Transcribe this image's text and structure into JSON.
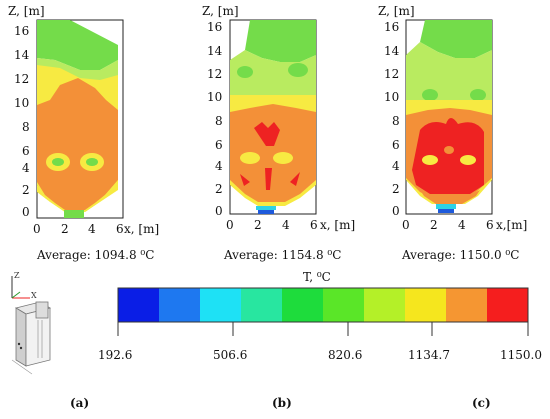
{
  "panels": [
    {
      "id": "a",
      "z_axis_label": "Z, [m]",
      "x_axis_label": "x, [m]",
      "z_ticks": [
        "16",
        "14",
        "12",
        "10",
        "8",
        "6",
        "4",
        "2",
        "0"
      ],
      "x_ticks": [
        "0",
        "2",
        "4",
        "6"
      ],
      "average_label": "Average: 1094.8 ⁰C",
      "subfigure": "(a)"
    },
    {
      "id": "b",
      "z_axis_label": "Z, [m]",
      "x_axis_label": "x, [m]",
      "z_ticks": [
        "16",
        "14",
        "12",
        "10",
        "8",
        "6",
        "4",
        "2",
        "0"
      ],
      "x_ticks": [
        "0",
        "2",
        "4",
        "6"
      ],
      "average_label": "Average: 1154.8 ⁰C",
      "subfigure": "(b)"
    },
    {
      "id": "c",
      "z_axis_label": "Z, [m]",
      "x_axis_label": "x,[m]",
      "z_ticks": [
        "16",
        "14",
        "12",
        "10",
        "8",
        "6",
        "4",
        "2",
        "0"
      ],
      "x_ticks": [
        "0",
        "2",
        "4",
        "6"
      ],
      "average_label": "Average: 1150.0 ⁰C",
      "subfigure": "(c)"
    }
  ],
  "colorbar": {
    "title": "T, ⁰C",
    "colors": [
      "#0a1ee6",
      "#1e78f0",
      "#1ee1f5",
      "#28e6a0",
      "#1edc3c",
      "#5ae628",
      "#b4f028",
      "#f5e61e",
      "#f59632",
      "#f51e1e"
    ],
    "ticks": [
      "192.6",
      "506.6",
      "820.6",
      "1134.7",
      "1150.0"
    ]
  },
  "axis_icon": {
    "z": "Z",
    "x": "X"
  },
  "colors": {
    "red": "#ee2222",
    "orange": "#f39038",
    "yellow": "#f7ea42",
    "lightgreen": "#b9eb60",
    "green": "#74dc4a",
    "cyan": "#2fd2e6",
    "blue": "#1e5adc"
  }
}
